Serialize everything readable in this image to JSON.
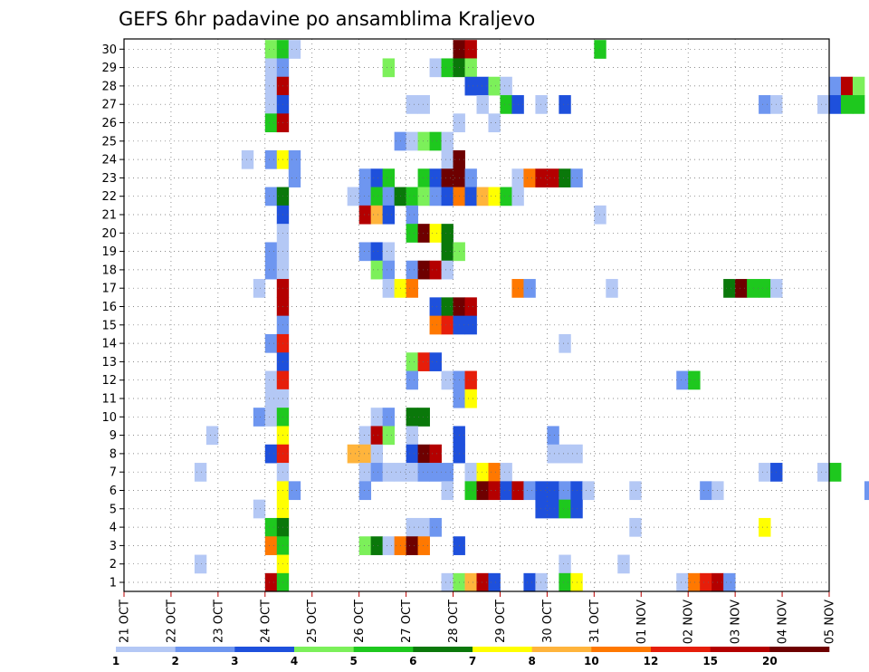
{
  "chart_data": {
    "type": "heatmap",
    "title": "GEFS 6hr padavine po ansamblima Kraljevo",
    "xlabel": "",
    "ylabel": "",
    "x_ticks": [
      "21 OCT",
      "22 OCT",
      "23 OCT",
      "24 OCT",
      "25 OCT",
      "26 OCT",
      "27 OCT",
      "28 OCT",
      "29 OCT",
      "30 OCT",
      "31 OCT",
      "01 NOV",
      "02 NOV",
      "03 NOV",
      "04 NOV",
      "05 NOV"
    ],
    "y_ticks": [
      "1",
      "2",
      "3",
      "4",
      "5",
      "6",
      "7",
      "8",
      "9",
      "10",
      "11",
      "12",
      "13",
      "14",
      "15",
      "16",
      "17",
      "18",
      "19",
      "20",
      "21",
      "22",
      "23",
      "24",
      "25",
      "26",
      "27",
      "28",
      "29",
      "30"
    ],
    "time_steps_per_day": 4,
    "x_start": "21 OCT 00z",
    "grid": true,
    "legend": {
      "position": "bottom",
      "labels": [
        "1",
        "2",
        "3",
        "4",
        "5",
        "6",
        "7",
        "8",
        "10",
        "12",
        "15",
        "20"
      ],
      "colors": [
        "#b4c8f5",
        "#6e96f0",
        "#1e50dc",
        "#7cf05a",
        "#1ec81e",
        "#0a780a",
        "#ffff00",
        "#ffb43c",
        "#ff7800",
        "#e61e0a",
        "#b40000",
        "#6e0000"
      ]
    },
    "cells_note_format": "[member, day, step, level] where day 0 = 21 OCT, step 0-3 = 00z/06z/12z/18z, level = legend bin index",
    "cells": [
      [
        30,
        3,
        0,
        3
      ],
      [
        30,
        3,
        1,
        4
      ],
      [
        30,
        3,
        2,
        0
      ],
      [
        30,
        7,
        0,
        11
      ],
      [
        30,
        7,
        1,
        10
      ],
      [
        30,
        10,
        0,
        4
      ],
      [
        29,
        3,
        0,
        0
      ],
      [
        29,
        3,
        1,
        1
      ],
      [
        29,
        5,
        2,
        3
      ],
      [
        29,
        6,
        2,
        0
      ],
      [
        29,
        6,
        3,
        4
      ],
      [
        29,
        7,
        0,
        5
      ],
      [
        29,
        7,
        1,
        3
      ],
      [
        28,
        3,
        0,
        0
      ],
      [
        28,
        3,
        1,
        10
      ],
      [
        28,
        7,
        1,
        2
      ],
      [
        28,
        7,
        2,
        2
      ],
      [
        28,
        7,
        3,
        3
      ],
      [
        28,
        8,
        0,
        0
      ],
      [
        28,
        15,
        0,
        1
      ],
      [
        28,
        15,
        1,
        10
      ],
      [
        28,
        15,
        2,
        3
      ],
      [
        27,
        3,
        0,
        0
      ],
      [
        27,
        3,
        1,
        2
      ],
      [
        27,
        6,
        0,
        0
      ],
      [
        27,
        6,
        1,
        0
      ],
      [
        27,
        7,
        2,
        0
      ],
      [
        27,
        8,
        0,
        4
      ],
      [
        27,
        8,
        1,
        2
      ],
      [
        27,
        8,
        3,
        0
      ],
      [
        27,
        9,
        1,
        2
      ],
      [
        27,
        13,
        2,
        1
      ],
      [
        27,
        13,
        3,
        0
      ],
      [
        27,
        14,
        3,
        0
      ],
      [
        27,
        15,
        0,
        2
      ],
      [
        27,
        15,
        1,
        4
      ],
      [
        27,
        15,
        2,
        4
      ],
      [
        26,
        3,
        0,
        4
      ],
      [
        26,
        3,
        1,
        10
      ],
      [
        26,
        7,
        0,
        0
      ],
      [
        26,
        7,
        3,
        0
      ],
      [
        25,
        5,
        3,
        1
      ],
      [
        25,
        6,
        0,
        0
      ],
      [
        25,
        6,
        1,
        3
      ],
      [
        25,
        6,
        2,
        4
      ],
      [
        25,
        6,
        3,
        0
      ],
      [
        24,
        2,
        2,
        0
      ],
      [
        24,
        3,
        0,
        1
      ],
      [
        24,
        3,
        1,
        6
      ],
      [
        24,
        3,
        2,
        1
      ],
      [
        24,
        6,
        3,
        0
      ],
      [
        24,
        7,
        0,
        11
      ],
      [
        23,
        3,
        2,
        1
      ],
      [
        23,
        5,
        0,
        1
      ],
      [
        23,
        5,
        1,
        2
      ],
      [
        23,
        5,
        2,
        4
      ],
      [
        23,
        6,
        1,
        4
      ],
      [
        23,
        6,
        2,
        2
      ],
      [
        23,
        6,
        3,
        11
      ],
      [
        23,
        7,
        0,
        11
      ],
      [
        23,
        7,
        1,
        1
      ],
      [
        23,
        8,
        1,
        0
      ],
      [
        23,
        8,
        2,
        8
      ],
      [
        23,
        8,
        3,
        10
      ],
      [
        23,
        9,
        0,
        10
      ],
      [
        23,
        9,
        1,
        5
      ],
      [
        23,
        9,
        2,
        1
      ],
      [
        22,
        3,
        0,
        1
      ],
      [
        22,
        3,
        1,
        5
      ],
      [
        22,
        4,
        3,
        0
      ],
      [
        22,
        5,
        0,
        1
      ],
      [
        22,
        5,
        1,
        4
      ],
      [
        22,
        5,
        2,
        1
      ],
      [
        22,
        5,
        3,
        5
      ],
      [
        22,
        6,
        0,
        4
      ],
      [
        22,
        6,
        1,
        3
      ],
      [
        22,
        6,
        2,
        1
      ],
      [
        22,
        6,
        3,
        2
      ],
      [
        22,
        7,
        0,
        8
      ],
      [
        22,
        7,
        1,
        2
      ],
      [
        22,
        7,
        2,
        7
      ],
      [
        22,
        7,
        3,
        6
      ],
      [
        22,
        8,
        0,
        4
      ],
      [
        22,
        8,
        1,
        0
      ],
      [
        21,
        3,
        1,
        2
      ],
      [
        21,
        5,
        0,
        10
      ],
      [
        21,
        5,
        1,
        7
      ],
      [
        21,
        5,
        2,
        2
      ],
      [
        21,
        6,
        0,
        1
      ],
      [
        21,
        10,
        0,
        0
      ],
      [
        20,
        3,
        1,
        0
      ],
      [
        20,
        6,
        0,
        4
      ],
      [
        20,
        6,
        1,
        11
      ],
      [
        20,
        6,
        2,
        6
      ],
      [
        20,
        6,
        3,
        5
      ],
      [
        19,
        3,
        0,
        1
      ],
      [
        19,
        3,
        1,
        0
      ],
      [
        19,
        5,
        0,
        1
      ],
      [
        19,
        5,
        1,
        2
      ],
      [
        19,
        5,
        2,
        0
      ],
      [
        19,
        6,
        3,
        5
      ],
      [
        19,
        7,
        0,
        3
      ],
      [
        18,
        3,
        0,
        1
      ],
      [
        18,
        3,
        1,
        0
      ],
      [
        18,
        5,
        1,
        3
      ],
      [
        18,
        5,
        2,
        1
      ],
      [
        18,
        6,
        0,
        1
      ],
      [
        18,
        6,
        1,
        11
      ],
      [
        18,
        6,
        2,
        10
      ],
      [
        18,
        6,
        3,
        0
      ],
      [
        17,
        2,
        3,
        0
      ],
      [
        17,
        3,
        1,
        10
      ],
      [
        17,
        5,
        2,
        0
      ],
      [
        17,
        5,
        3,
        6
      ],
      [
        17,
        6,
        0,
        8
      ],
      [
        17,
        8,
        1,
        8
      ],
      [
        17,
        8,
        2,
        1
      ],
      [
        17,
        10,
        1,
        0
      ],
      [
        17,
        12,
        3,
        5
      ],
      [
        17,
        13,
        0,
        11
      ],
      [
        17,
        13,
        1,
        4
      ],
      [
        17,
        13,
        2,
        4
      ],
      [
        17,
        13,
        3,
        0
      ],
      [
        16,
        3,
        1,
        10
      ],
      [
        16,
        6,
        2,
        2
      ],
      [
        16,
        6,
        3,
        5
      ],
      [
        16,
        7,
        0,
        11
      ],
      [
        16,
        7,
        1,
        10
      ],
      [
        15,
        3,
        1,
        1
      ],
      [
        15,
        6,
        2,
        8
      ],
      [
        15,
        6,
        3,
        9
      ],
      [
        15,
        7,
        0,
        2
      ],
      [
        15,
        7,
        1,
        2
      ],
      [
        14,
        3,
        0,
        1
      ],
      [
        14,
        3,
        1,
        9
      ],
      [
        14,
        9,
        1,
        0
      ],
      [
        13,
        3,
        1,
        2
      ],
      [
        13,
        6,
        0,
        3
      ],
      [
        13,
        6,
        1,
        9
      ],
      [
        13,
        6,
        2,
        2
      ],
      [
        12,
        3,
        0,
        0
      ],
      [
        12,
        3,
        1,
        9
      ],
      [
        12,
        6,
        0,
        1
      ],
      [
        12,
        6,
        3,
        0
      ],
      [
        12,
        7,
        0,
        1
      ],
      [
        12,
        7,
        1,
        9
      ],
      [
        12,
        11,
        3,
        1
      ],
      [
        12,
        12,
        0,
        4
      ],
      [
        11,
        3,
        0,
        0
      ],
      [
        11,
        3,
        1,
        0
      ],
      [
        11,
        7,
        0,
        1
      ],
      [
        11,
        7,
        1,
        6
      ],
      [
        10,
        2,
        3,
        1
      ],
      [
        10,
        3,
        0,
        0
      ],
      [
        10,
        3,
        1,
        4
      ],
      [
        10,
        5,
        1,
        0
      ],
      [
        10,
        5,
        2,
        1
      ],
      [
        10,
        6,
        0,
        5
      ],
      [
        10,
        6,
        1,
        5
      ],
      [
        9,
        1,
        3,
        0
      ],
      [
        9,
        3,
        1,
        6
      ],
      [
        9,
        5,
        0,
        0
      ],
      [
        9,
        5,
        1,
        10
      ],
      [
        9,
        5,
        2,
        3
      ],
      [
        9,
        6,
        0,
        0
      ],
      [
        9,
        7,
        0,
        2
      ],
      [
        9,
        9,
        0,
        1
      ],
      [
        8,
        3,
        0,
        2
      ],
      [
        8,
        3,
        1,
        9
      ],
      [
        8,
        4,
        3,
        7
      ],
      [
        8,
        5,
        0,
        7
      ],
      [
        8,
        5,
        1,
        0
      ],
      [
        8,
        6,
        0,
        2
      ],
      [
        8,
        6,
        1,
        11
      ],
      [
        8,
        6,
        2,
        10
      ],
      [
        8,
        7,
        0,
        2
      ],
      [
        8,
        9,
        0,
        0
      ],
      [
        8,
        9,
        1,
        0
      ],
      [
        8,
        9,
        2,
        0
      ],
      [
        7,
        1,
        2,
        0
      ],
      [
        7,
        3,
        1,
        0
      ],
      [
        7,
        5,
        0,
        0
      ],
      [
        7,
        5,
        1,
        1
      ],
      [
        7,
        5,
        2,
        0
      ],
      [
        7,
        5,
        3,
        0
      ],
      [
        7,
        6,
        0,
        0
      ],
      [
        7,
        6,
        1,
        1
      ],
      [
        7,
        6,
        2,
        1
      ],
      [
        7,
        6,
        3,
        1
      ],
      [
        7,
        7,
        1,
        0
      ],
      [
        7,
        7,
        2,
        6
      ],
      [
        7,
        7,
        3,
        8
      ],
      [
        7,
        8,
        0,
        0
      ],
      [
        7,
        13,
        2,
        0
      ],
      [
        7,
        13,
        3,
        2
      ],
      [
        7,
        14,
        3,
        0
      ],
      [
        7,
        15,
        0,
        4
      ],
      [
        6,
        3,
        1,
        6
      ],
      [
        6,
        3,
        2,
        1
      ],
      [
        6,
        5,
        0,
        1
      ],
      [
        6,
        6,
        3,
        0
      ],
      [
        6,
        7,
        1,
        4
      ],
      [
        6,
        7,
        2,
        11
      ],
      [
        6,
        7,
        3,
        10
      ],
      [
        6,
        8,
        0,
        2
      ],
      [
        6,
        8,
        1,
        10
      ],
      [
        6,
        8,
        2,
        1
      ],
      [
        6,
        8,
        3,
        2
      ],
      [
        6,
        9,
        0,
        2
      ],
      [
        6,
        9,
        1,
        1
      ],
      [
        6,
        9,
        2,
        2
      ],
      [
        6,
        9,
        3,
        0
      ],
      [
        6,
        10,
        3,
        0
      ],
      [
        6,
        12,
        1,
        1
      ],
      [
        6,
        12,
        2,
        0
      ],
      [
        6,
        15,
        3,
        1
      ],
      [
        5,
        2,
        3,
        0
      ],
      [
        5,
        3,
        1,
        6
      ],
      [
        5,
        8,
        3,
        2
      ],
      [
        5,
        9,
        0,
        2
      ],
      [
        5,
        9,
        1,
        4
      ],
      [
        5,
        9,
        2,
        2
      ],
      [
        4,
        3,
        0,
        4
      ],
      [
        4,
        3,
        1,
        5
      ],
      [
        4,
        6,
        0,
        0
      ],
      [
        4,
        6,
        1,
        0
      ],
      [
        4,
        6,
        2,
        1
      ],
      [
        4,
        10,
        3,
        0
      ],
      [
        4,
        13,
        2,
        6
      ],
      [
        3,
        3,
        0,
        8
      ],
      [
        3,
        3,
        1,
        4
      ],
      [
        3,
        5,
        0,
        3
      ],
      [
        3,
        5,
        1,
        5
      ],
      [
        3,
        5,
        2,
        0
      ],
      [
        3,
        5,
        3,
        8
      ],
      [
        3,
        6,
        0,
        11
      ],
      [
        3,
        6,
        1,
        8
      ],
      [
        3,
        7,
        0,
        2
      ],
      [
        2,
        1,
        2,
        0
      ],
      [
        2,
        3,
        1,
        6
      ],
      [
        2,
        9,
        1,
        0
      ],
      [
        2,
        10,
        2,
        0
      ],
      [
        1,
        3,
        0,
        10
      ],
      [
        1,
        3,
        1,
        4
      ],
      [
        1,
        6,
        3,
        0
      ],
      [
        1,
        7,
        0,
        3
      ],
      [
        1,
        7,
        1,
        7
      ],
      [
        1,
        7,
        2,
        10
      ],
      [
        1,
        7,
        3,
        2
      ],
      [
        1,
        8,
        2,
        2
      ],
      [
        1,
        8,
        3,
        0
      ],
      [
        1,
        9,
        1,
        4
      ],
      [
        1,
        9,
        2,
        6
      ],
      [
        1,
        11,
        3,
        0
      ],
      [
        1,
        12,
        0,
        8
      ],
      [
        1,
        12,
        1,
        9
      ],
      [
        1,
        12,
        2,
        10
      ],
      [
        1,
        12,
        3,
        1
      ]
    ]
  }
}
